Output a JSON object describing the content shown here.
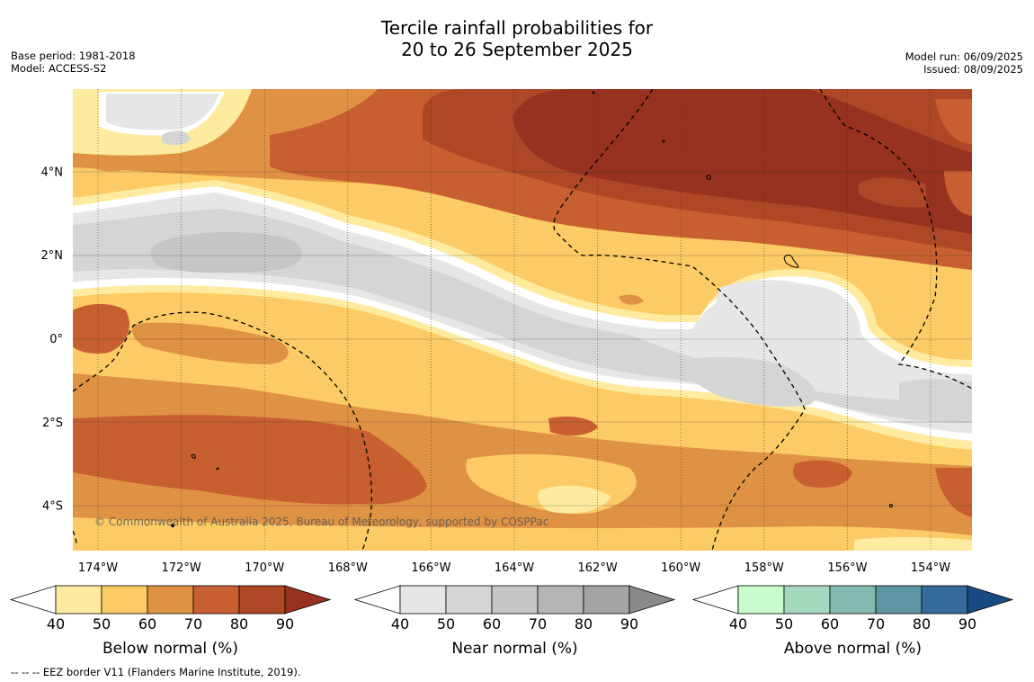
{
  "title": {
    "line1": "Tercile rainfall probabilities for",
    "line2": "20 to 26 September 2025"
  },
  "meta_left": {
    "base_period": "Base period: 1981-2018",
    "model": "Model: ACCESS-S2"
  },
  "meta_right": {
    "model_run": "Model run: 06/09/2025",
    "issued": "Issued: 08/09/2025"
  },
  "map": {
    "lat_labels": [
      "4°N",
      "2°N",
      "0°",
      "2°S",
      "4°S"
    ],
    "lat_values": [
      4,
      2,
      0,
      -2,
      -4
    ],
    "lon_labels": [
      "174°W",
      "172°W",
      "170°W",
      "168°W",
      "166°W",
      "164°W",
      "162°W",
      "160°W",
      "158°W",
      "156°W",
      "154°W"
    ],
    "lon_values": [
      -174,
      -172,
      -170,
      -168,
      -166,
      -164,
      -162,
      -160,
      -158,
      -156,
      -154
    ],
    "copyright": "© Commonwealth of Australia 2025, Bureau of Meteorology, supported by COSPPac"
  },
  "colorbars": [
    {
      "name": "below-normal",
      "label": "Below normal (%)",
      "ticks": [
        "40",
        "50",
        "60",
        "70",
        "80",
        "90"
      ],
      "colors": [
        "#ffffff",
        "#feeb9f",
        "#fdcb65",
        "#df9243",
        "#c75f31",
        "#ad4726",
        "#973220"
      ]
    },
    {
      "name": "near-normal",
      "label": "Near normal (%)",
      "ticks": [
        "40",
        "50",
        "60",
        "70",
        "80",
        "90"
      ],
      "colors": [
        "#ffffff",
        "#e6e6e6",
        "#d5d5d5",
        "#c6c6c6",
        "#b5b5b5",
        "#a4a4a4",
        "#8a8a8a"
      ]
    },
    {
      "name": "above-normal",
      "label": "Above normal (%)",
      "ticks": [
        "40",
        "50",
        "60",
        "70",
        "80",
        "90"
      ],
      "colors": [
        "#ffffff",
        "#c8fccc",
        "#a4d9bf",
        "#84b9b2",
        "#5e96a3",
        "#356a9a",
        "#174b82"
      ]
    }
  ],
  "footer": "-- -- -- EEZ border V11 (Flanders Marine Institute, 2019)."
}
